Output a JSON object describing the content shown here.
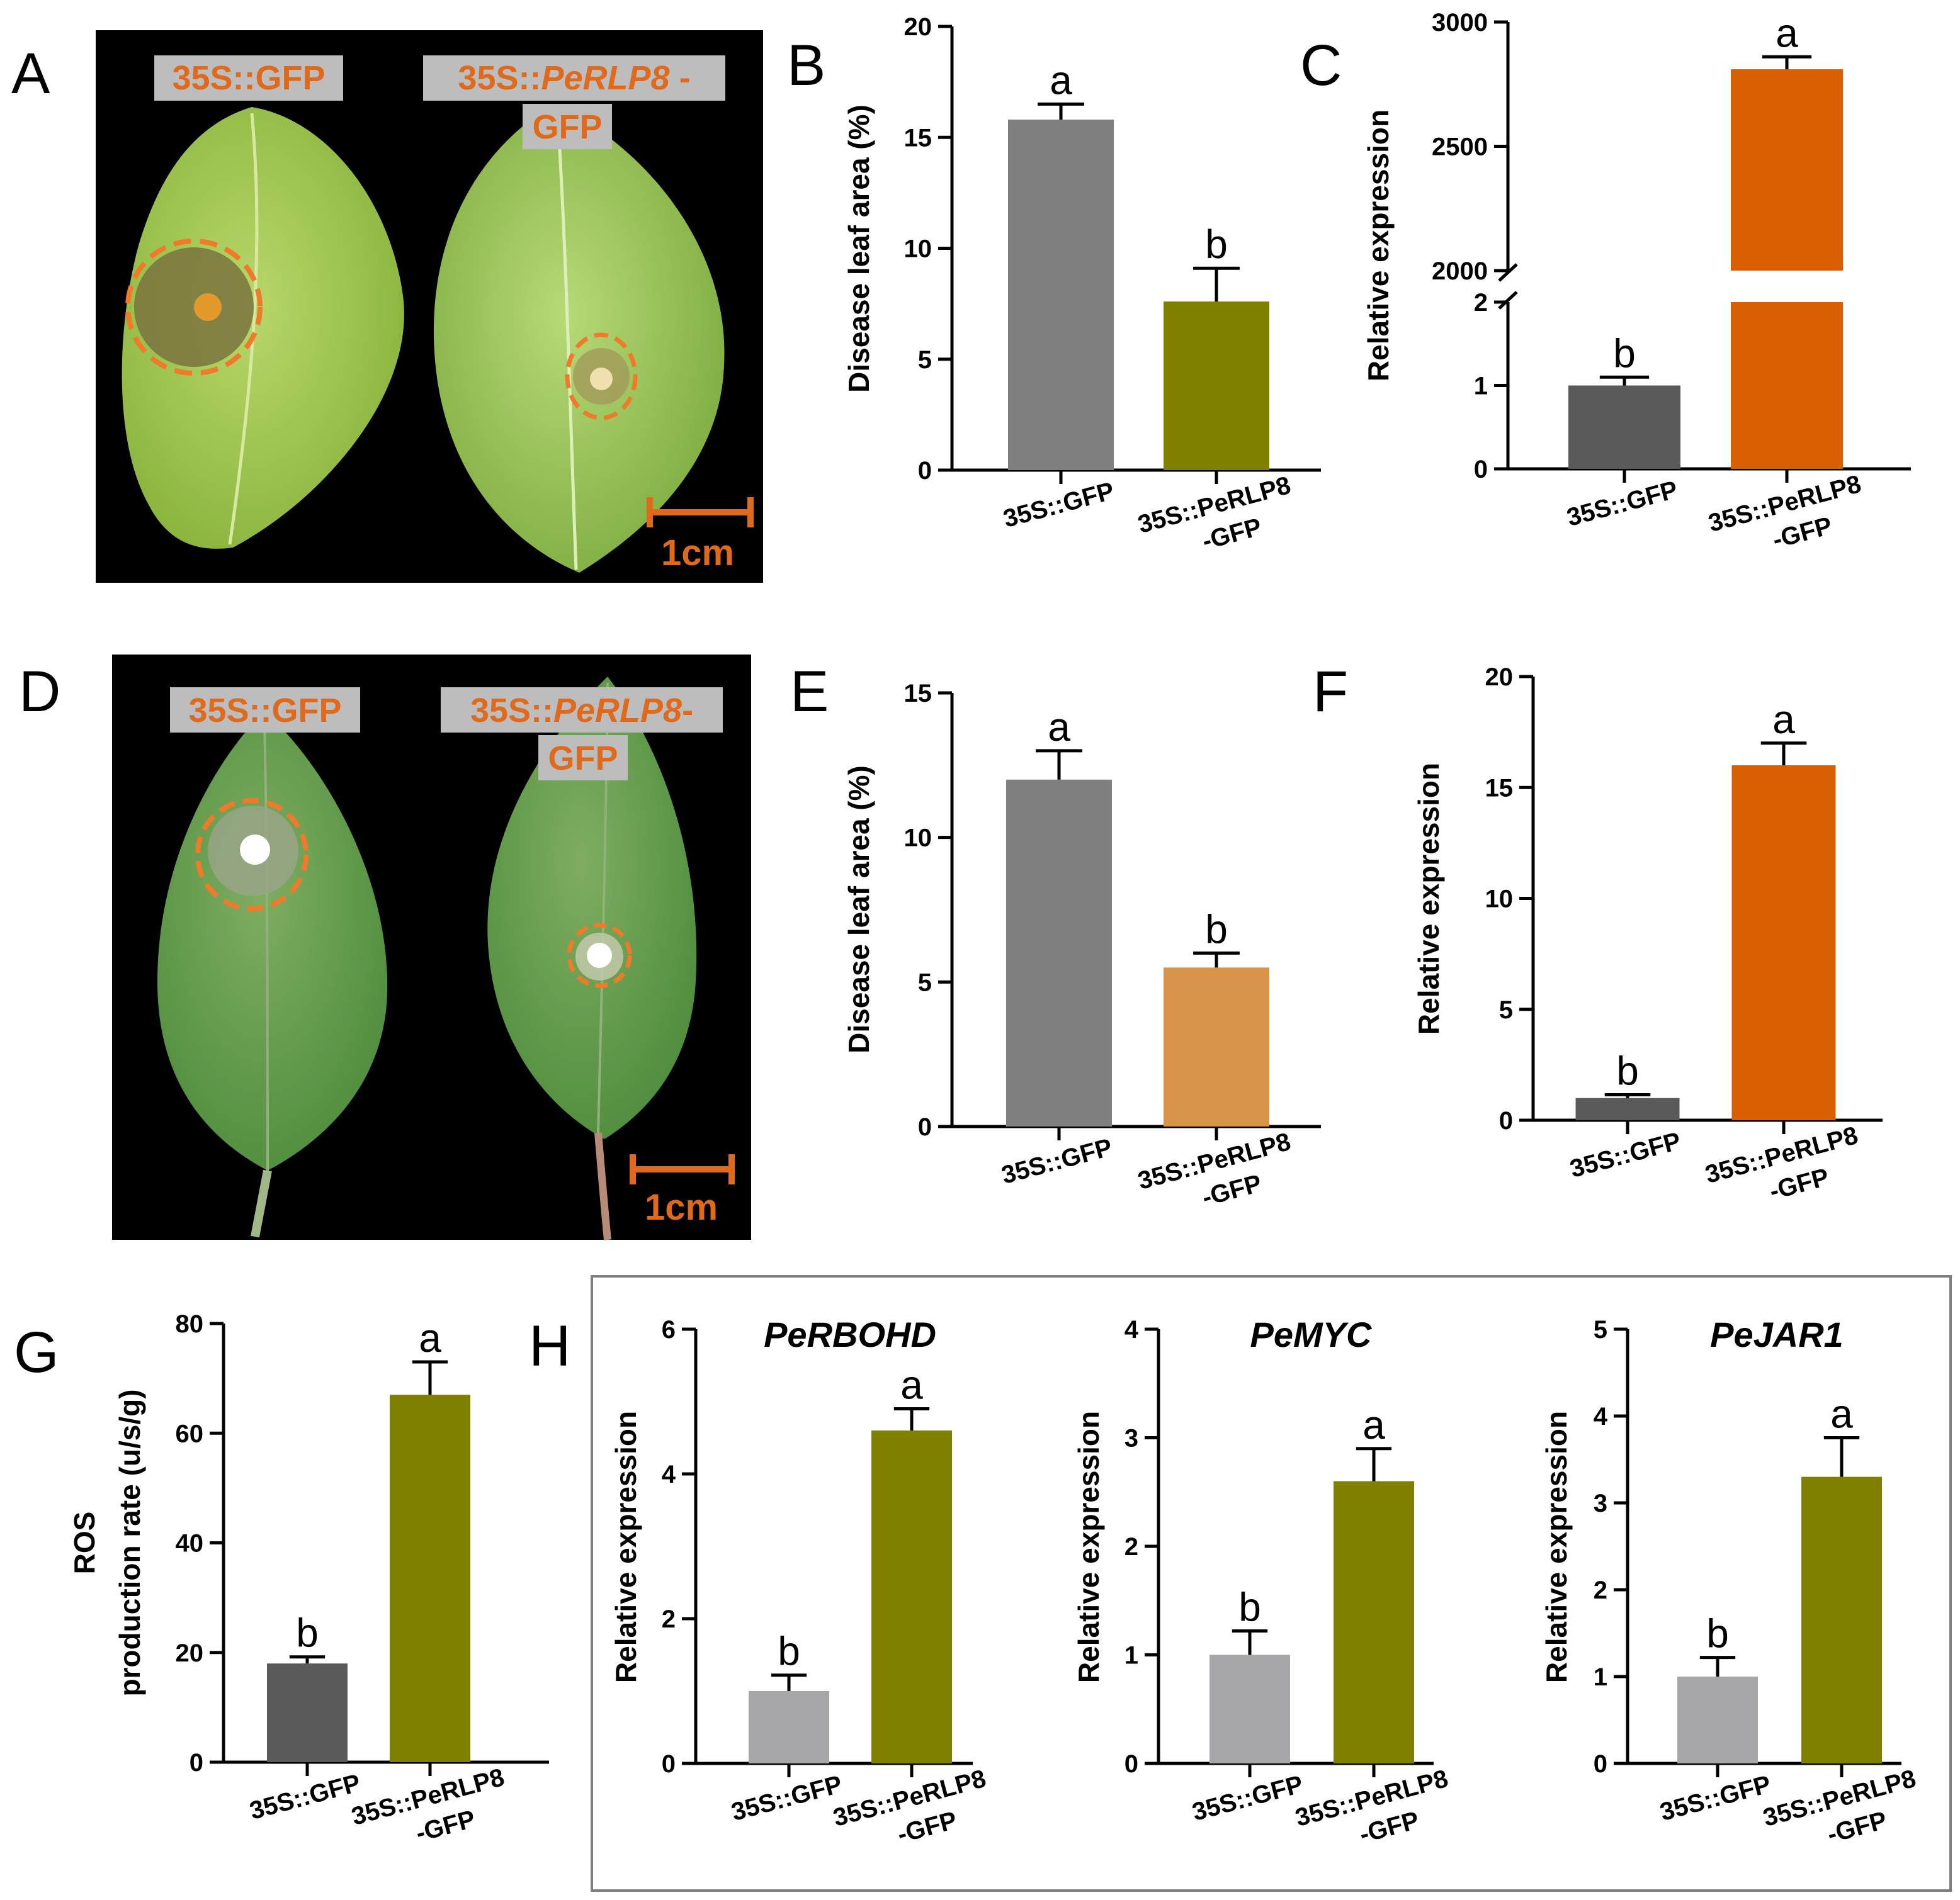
{
  "colors": {
    "gray": "#7f7f7f",
    "dark_gray": "#595959",
    "light_gray": "#a6a6a8",
    "olive": "#808000",
    "orange": "#d95f02",
    "light_orange": "#d9944b",
    "annot_orange": "#e06a1c"
  },
  "photos": [
    {
      "panel": "A",
      "label_left": "35S::GFP",
      "label_right_prefix": "35S::",
      "label_right_gene": "PeRLP8",
      "label_right_suffix": " -",
      "label_right_line2": "GFP",
      "scale": "1cm"
    },
    {
      "panel": "D",
      "label_left": "35S::GFP",
      "label_right_prefix": "35S::",
      "label_right_gene": "PeRLP8",
      "label_right_suffix": "-",
      "label_right_line2": "GFP",
      "scale": "1cm"
    }
  ],
  "chart_data": [
    {
      "panel": "B",
      "type": "bar",
      "title": "",
      "ylabel": "Disease leaf area (%)",
      "ylim": [
        0,
        20
      ],
      "yticks": [
        0,
        5,
        10,
        15,
        20
      ],
      "categories": [
        "35S::GFP",
        "35S::PeRLP8 -GFP"
      ],
      "cat_line1": [
        "35S::GFP",
        "35S::PeRLP8"
      ],
      "cat_line2": [
        "",
        "-GFP"
      ],
      "values": [
        15.8,
        7.6
      ],
      "errors": [
        0.7,
        1.5
      ],
      "letters": [
        "a",
        "b"
      ],
      "colors": [
        "#7f7f7f",
        "#808000"
      ]
    },
    {
      "panel": "C",
      "type": "bar",
      "title": "",
      "ylabel": "Relative expression",
      "broken_axis": true,
      "lower_ylim": [
        0,
        2
      ],
      "lower_yticks": [
        0,
        1,
        2
      ],
      "upper_ylim": [
        2000,
        3000
      ],
      "upper_yticks": [
        2000,
        2500,
        3000
      ],
      "categories": [
        "35S::GFP",
        "35S::PeRLP8 -GFP"
      ],
      "cat_line1": [
        "35S::GFP",
        "35S::PeRLP8"
      ],
      "cat_line2": [
        "",
        "-GFP"
      ],
      "values": [
        1.0,
        2810
      ],
      "errors": [
        0.1,
        50
      ],
      "letters": [
        "b",
        "a"
      ],
      "colors": [
        "#595959",
        "#d95f02"
      ]
    },
    {
      "panel": "E",
      "type": "bar",
      "title": "",
      "ylabel": "Disease leaf area (%)",
      "ylim": [
        0,
        15
      ],
      "yticks": [
        0,
        5,
        10,
        15
      ],
      "categories": [
        "35S::GFP",
        "35S::PeRLP8 -GFP"
      ],
      "cat_line1": [
        "35S::GFP",
        "35S::PeRLP8"
      ],
      "cat_line2": [
        "",
        "-GFP"
      ],
      "values": [
        12.0,
        5.5
      ],
      "errors": [
        1.0,
        0.5
      ],
      "letters": [
        "a",
        "b"
      ],
      "colors": [
        "#7f7f7f",
        "#d9944b"
      ]
    },
    {
      "panel": "F",
      "type": "bar",
      "title": "",
      "ylabel": "Relative expression",
      "ylim": [
        0,
        20
      ],
      "yticks": [
        0,
        5,
        10,
        15,
        20
      ],
      "categories": [
        "35S::GFP",
        "35S::PeRLP8 -GFP"
      ],
      "cat_line1": [
        "35S::GFP",
        "35S::PeRLP8"
      ],
      "cat_line2": [
        "",
        "-GFP"
      ],
      "values": [
        1.0,
        16.0
      ],
      "errors": [
        0.15,
        1.0
      ],
      "letters": [
        "b",
        "a"
      ],
      "colors": [
        "#595959",
        "#d95f02"
      ]
    },
    {
      "panel": "G",
      "type": "bar",
      "title": "",
      "ylabel_line1": "ROS",
      "ylabel_line2": "production rate (u/s/g)",
      "ylim": [
        0,
        80
      ],
      "yticks": [
        0,
        20,
        40,
        60,
        80
      ],
      "categories": [
        "35S::GFP",
        "35S::PeRLP8 -GFP"
      ],
      "cat_line1": [
        "35S::GFP",
        "35S::PeRLP8"
      ],
      "cat_line2": [
        "",
        "-GFP"
      ],
      "values": [
        18.0,
        67.0
      ],
      "errors": [
        1.2,
        6.0
      ],
      "letters": [
        "b",
        "a"
      ],
      "colors": [
        "#595959",
        "#808000"
      ]
    },
    {
      "panel": "H",
      "type": "bar",
      "title": "PeRBOHD",
      "ylabel": "Relative expression",
      "ylim": [
        0,
        6
      ],
      "yticks": [
        0,
        2,
        4,
        6
      ],
      "categories": [
        "35S::GFP",
        "35S::PeRLP8 -GFP"
      ],
      "cat_line1": [
        "35S::GFP",
        "35S::PeRLP8"
      ],
      "cat_line2": [
        "",
        "-GFP"
      ],
      "values": [
        1.0,
        4.6
      ],
      "errors": [
        0.22,
        0.3
      ],
      "letters": [
        "b",
        "a"
      ],
      "colors": [
        "#a6a6a8",
        "#808000"
      ]
    },
    {
      "panel": "",
      "type": "bar",
      "title": "PeMYC",
      "ylabel": "Relative expression",
      "ylim": [
        0,
        4
      ],
      "yticks": [
        0,
        1,
        2,
        3,
        4
      ],
      "categories": [
        "35S::GFP",
        "35S::PeRLP8 -GFP"
      ],
      "cat_line1": [
        "35S::GFP",
        "35S::PeRLP8"
      ],
      "cat_line2": [
        "",
        "-GFP"
      ],
      "values": [
        1.0,
        2.6
      ],
      "errors": [
        0.22,
        0.3
      ],
      "letters": [
        "b",
        "a"
      ],
      "colors": [
        "#a6a6a8",
        "#808000"
      ]
    },
    {
      "panel": "",
      "type": "bar",
      "title": "PeJAR1",
      "ylabel": "Relative expression",
      "ylim": [
        0,
        5
      ],
      "yticks": [
        0,
        1,
        2,
        3,
        4,
        5
      ],
      "categories": [
        "35S::GFP",
        "35S::PeRLP8 -GFP"
      ],
      "cat_line1": [
        "35S::GFP",
        "35S::PeRLP8"
      ],
      "cat_line2": [
        "",
        "-GFP"
      ],
      "values": [
        1.0,
        3.3
      ],
      "errors": [
        0.22,
        0.45
      ],
      "letters": [
        "b",
        "a"
      ],
      "colors": [
        "#a6a6a8",
        "#808000"
      ]
    }
  ]
}
